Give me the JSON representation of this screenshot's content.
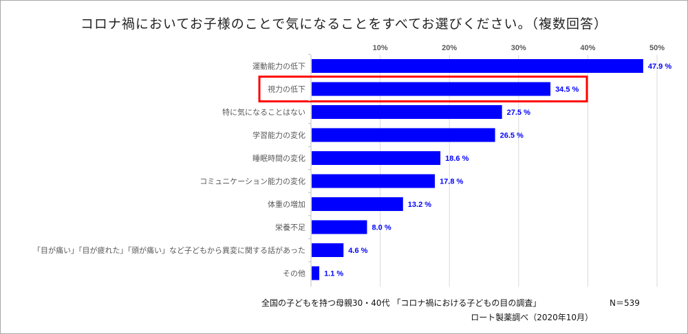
{
  "chart_data": {
    "type": "bar",
    "orientation": "horizontal",
    "title": "コロナ禍においてお子様のことで気になることをすべてお選びください。（複数回答）",
    "categories": [
      "運動能力の低下",
      "視力の低下",
      "特に気になることはない",
      "学習能力の変化",
      "睡眠時間の変化",
      "コミュニケーション能力の変化",
      "体重の増加",
      "栄養不足",
      "「目が痛い」「目が疲れた」「頭が痛い」など子どもから異変に関する話があった",
      "その他"
    ],
    "values": [
      47.9,
      34.5,
      27.5,
      26.5,
      18.6,
      17.8,
      13.2,
      8.0,
      4.6,
      1.1
    ],
    "value_labels": [
      "47.9 %",
      "34.5 %",
      "27.5 %",
      "26.5 %",
      "18.6 %",
      "17.8 %",
      "13.2 %",
      "8.0 %",
      "4.6 %",
      "1.1 %"
    ],
    "xlim": [
      0,
      50
    ],
    "xticks": [
      10,
      20,
      30,
      40,
      50
    ],
    "xtick_labels": [
      "10%",
      "20%",
      "30%",
      "40%",
      "50%"
    ],
    "axis_position": "top",
    "grid": true,
    "highlighted_category": "視力の低下",
    "bar_color": "#0000ff",
    "label_color": "#0000ff",
    "highlight_color": "#ff0000"
  },
  "footer": {
    "source_line1": "全国の子どもを持つ母親30・40代 「コロナ禍における子どもの目の調査」",
    "sample": "N＝539",
    "source_line2": "ロート製薬調べ（2020年10月）"
  }
}
